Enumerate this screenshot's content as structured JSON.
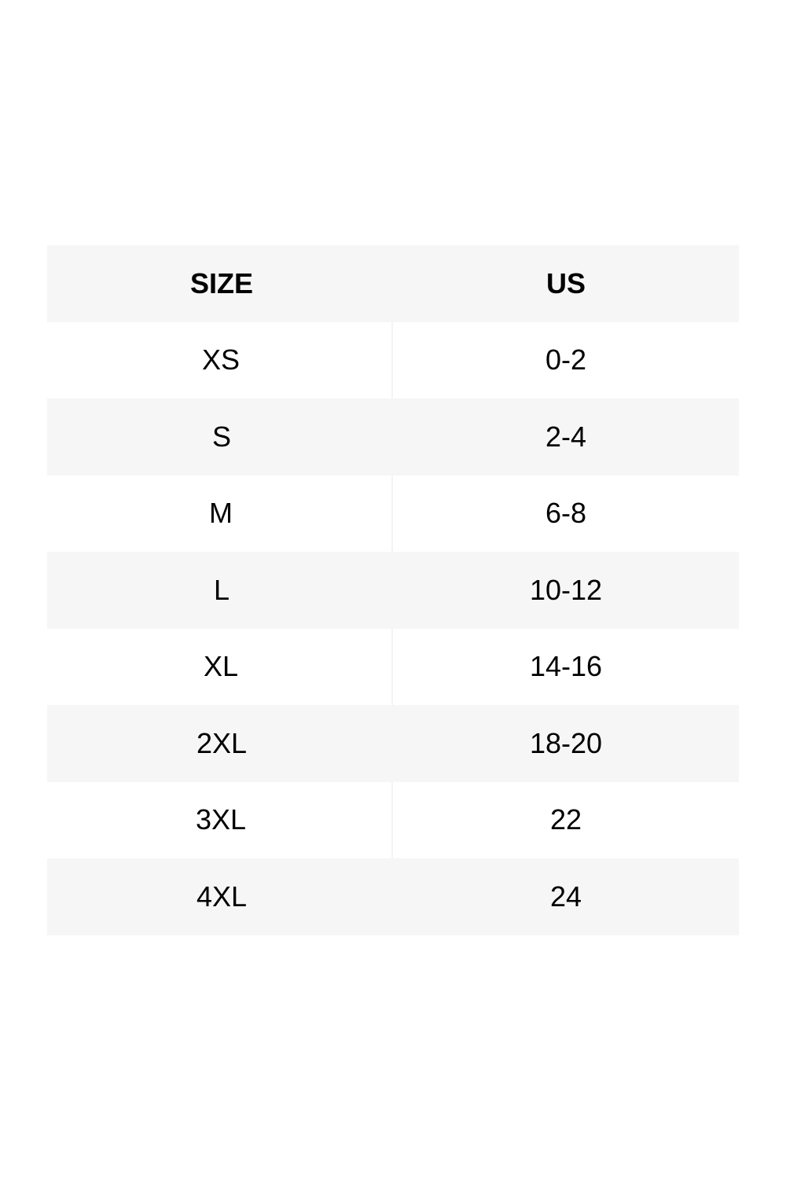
{
  "table": {
    "headers": [
      "SIZE",
      "US"
    ],
    "rows": [
      [
        "XS",
        "0-2"
      ],
      [
        "S",
        "2-4"
      ],
      [
        "M",
        "6-8"
      ],
      [
        "L",
        "10-12"
      ],
      [
        "XL",
        "14-16"
      ],
      [
        "2XL",
        "18-20"
      ],
      [
        "3XL",
        "22"
      ],
      [
        "4XL",
        "24"
      ]
    ]
  },
  "colors": {
    "stripe": "#f6f6f6",
    "text": "#000000"
  }
}
